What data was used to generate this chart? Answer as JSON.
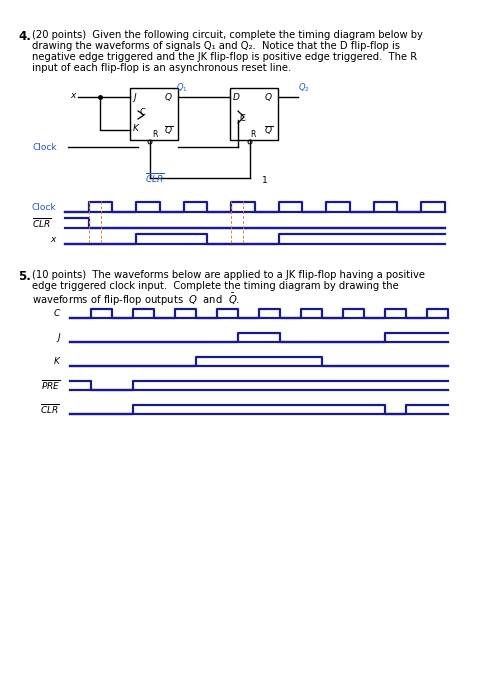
{
  "bg_color": "#ffffff",
  "header_bg": "#a0a0a0",
  "waveform_color": "#1a1a8c",
  "label_color": "#2255cc",
  "dashed_color": "#cc8833",
  "clock_q4": [
    0,
    0,
    1,
    1,
    0,
    0,
    1,
    1,
    0,
    0,
    1,
    1,
    0,
    0,
    1,
    1,
    0,
    0,
    1,
    1,
    0,
    0,
    1,
    1,
    0,
    0,
    1,
    1,
    0,
    0,
    1,
    1,
    0
  ],
  "clr_q4": [
    1,
    1,
    0,
    0,
    0,
    0,
    0,
    0,
    0,
    0,
    0,
    0,
    0,
    0,
    0,
    0,
    0,
    0,
    0,
    0,
    0,
    0,
    0,
    0,
    0,
    0,
    0,
    0,
    0,
    0,
    0,
    0,
    0
  ],
  "x_q4": [
    0,
    0,
    0,
    0,
    0,
    0,
    1,
    1,
    1,
    1,
    1,
    1,
    0,
    0,
    0,
    0,
    0,
    0,
    1,
    1,
    1,
    1,
    1,
    1,
    1,
    1,
    1,
    1,
    1,
    1,
    1,
    1,
    1
  ],
  "c_q5": [
    0,
    0,
    1,
    1,
    0,
    0,
    1,
    1,
    0,
    0,
    1,
    1,
    0,
    0,
    1,
    1,
    0,
    0,
    1,
    1,
    0,
    0,
    1,
    1,
    0,
    0,
    1,
    1,
    0,
    0,
    1,
    1,
    0,
    0,
    1,
    1,
    0
  ],
  "j_q5": [
    0,
    0,
    0,
    0,
    0,
    0,
    0,
    0,
    0,
    0,
    0,
    0,
    0,
    0,
    0,
    0,
    1,
    1,
    1,
    1,
    0,
    0,
    0,
    0,
    0,
    0,
    0,
    0,
    0,
    0,
    1,
    1,
    1,
    1,
    1,
    1,
    1
  ],
  "k_q5": [
    0,
    0,
    0,
    0,
    0,
    0,
    0,
    0,
    0,
    0,
    0,
    0,
    1,
    1,
    1,
    1,
    1,
    1,
    1,
    1,
    1,
    1,
    1,
    1,
    0,
    0,
    0,
    0,
    0,
    0,
    0,
    0,
    0,
    0,
    0,
    0,
    0
  ],
  "pre_q5": [
    1,
    1,
    0,
    0,
    0,
    0,
    1,
    1,
    1,
    1,
    1,
    1,
    1,
    1,
    1,
    1,
    1,
    1,
    1,
    1,
    1,
    1,
    1,
    1,
    1,
    1,
    1,
    1,
    1,
    1,
    1,
    1,
    1,
    1,
    1,
    1,
    1
  ],
  "clr_q5": [
    0,
    0,
    0,
    0,
    0,
    0,
    1,
    1,
    1,
    1,
    1,
    1,
    1,
    1,
    1,
    1,
    1,
    1,
    1,
    1,
    1,
    1,
    1,
    1,
    1,
    1,
    1,
    1,
    1,
    1,
    0,
    0,
    1,
    1,
    1,
    1,
    1
  ]
}
